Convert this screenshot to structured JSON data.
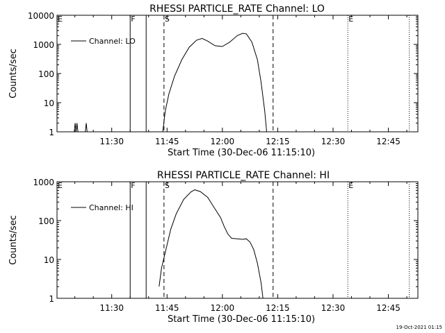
{
  "footer": {
    "timestamp": "19-Oct-2021 01:15"
  },
  "colors": {
    "background": "#ffffff",
    "foreground": "#000000"
  },
  "chart_data": [
    {
      "type": "line",
      "title": "RHESSI PARTICLE_RATE Channel: LO",
      "xlabel": "Start Time (30-Dec-06 11:15:10)",
      "ylabel": "Counts/sec",
      "yscale": "log",
      "xlim": [
        "11:15:10",
        "12:53:00"
      ],
      "ylim": [
        1,
        10000
      ],
      "xticks": [
        {
          "t": "11:30",
          "label": "11:30"
        },
        {
          "t": "11:45",
          "label": "11:45"
        },
        {
          "t": "12:00",
          "label": "12:00"
        },
        {
          "t": "12:15",
          "label": "12:15"
        },
        {
          "t": "12:30",
          "label": "12:30"
        },
        {
          "t": "12:45",
          "label": "12:45"
        }
      ],
      "yticks": [
        {
          "v": 1,
          "label": "1"
        },
        {
          "v": 10,
          "label": "10"
        },
        {
          "v": 100,
          "label": "100"
        },
        {
          "v": 1000,
          "label": "1000"
        },
        {
          "v": 10000,
          "label": "10000"
        }
      ],
      "legend": {
        "label": "Channel: LO",
        "position": "top-left"
      },
      "markers": [
        {
          "t": "11:15:10",
          "label": "E",
          "style": "dotted"
        },
        {
          "t": "11:35:00",
          "label": "F",
          "style": "solid"
        },
        {
          "t": "11:39:20",
          "label": "",
          "style": "solid"
        },
        {
          "t": "11:44:10",
          "label": "S",
          "style": "dashed"
        },
        {
          "t": "12:13:45",
          "label": "",
          "style": "dashed"
        },
        {
          "t": "12:34:00",
          "label": "E",
          "style": "dotted"
        },
        {
          "t": "12:50:40",
          "label": "",
          "style": "dotted"
        }
      ],
      "series": [
        {
          "points": [
            [
              "11:19:50",
              1
            ],
            [
              "11:20:05",
              2
            ],
            [
              "11:20:20",
              1
            ],
            [
              "11:20:35",
              2
            ],
            [
              "11:20:50",
              1
            ],
            [
              "11:22:50",
              1
            ],
            [
              "11:23:05",
              2
            ],
            [
              "11:23:20",
              1
            ]
          ]
        },
        {
          "points": [
            [
              "11:43:50",
              1
            ],
            [
              "11:44:30",
              5
            ],
            [
              "11:45:30",
              20
            ],
            [
              "11:47:00",
              80
            ],
            [
              "11:49:00",
              300
            ],
            [
              "11:51:00",
              800
            ],
            [
              "11:53:00",
              1400
            ],
            [
              "11:54:30",
              1600
            ],
            [
              "11:56:00",
              1300
            ],
            [
              "11:58:00",
              900
            ],
            [
              "12:00:00",
              850
            ],
            [
              "12:02:00",
              1200
            ],
            [
              "12:04:00",
              2000
            ],
            [
              "12:05:30",
              2400
            ],
            [
              "12:06:30",
              2300
            ],
            [
              "12:08:00",
              1200
            ],
            [
              "12:09:30",
              300
            ],
            [
              "12:10:30",
              50
            ],
            [
              "12:11:30",
              5
            ],
            [
              "12:12:00",
              1
            ]
          ]
        }
      ]
    },
    {
      "type": "line",
      "title": "RHESSI PARTICLE_RATE Channel: HI",
      "xlabel": "Start Time (30-Dec-06 11:15:10)",
      "ylabel": "Counts/sec",
      "yscale": "log",
      "xlim": [
        "11:15:10",
        "12:53:00"
      ],
      "ylim": [
        1,
        1000
      ],
      "xticks": [
        {
          "t": "11:30",
          "label": "11:30"
        },
        {
          "t": "11:45",
          "label": "11:45"
        },
        {
          "t": "12:00",
          "label": "12:00"
        },
        {
          "t": "12:15",
          "label": "12:15"
        },
        {
          "t": "12:30",
          "label": "12:30"
        },
        {
          "t": "12:45",
          "label": "12:45"
        }
      ],
      "yticks": [
        {
          "v": 1,
          "label": "1"
        },
        {
          "v": 10,
          "label": "10"
        },
        {
          "v": 100,
          "label": "100"
        },
        {
          "v": 1000,
          "label": "1000"
        }
      ],
      "legend": {
        "label": "Channel: HI",
        "position": "top-left"
      },
      "markers": [
        {
          "t": "11:15:10",
          "label": "E",
          "style": "dotted"
        },
        {
          "t": "11:35:00",
          "label": "F",
          "style": "solid"
        },
        {
          "t": "11:39:20",
          "label": "",
          "style": "solid"
        },
        {
          "t": "11:44:10",
          "label": "S",
          "style": "dashed"
        },
        {
          "t": "12:13:45",
          "label": "",
          "style": "dashed"
        },
        {
          "t": "12:34:00",
          "label": "E",
          "style": "dotted"
        },
        {
          "t": "12:50:40",
          "label": "",
          "style": "dotted"
        }
      ],
      "series": [
        {
          "points": [
            [
              "11:42:50",
              2
            ],
            [
              "11:43:30",
              6
            ],
            [
              "11:44:30",
              15
            ],
            [
              "11:46:00",
              60
            ],
            [
              "11:47:30",
              150
            ],
            [
              "11:49:30",
              350
            ],
            [
              "11:51:30",
              550
            ],
            [
              "11:52:30",
              620
            ],
            [
              "11:54:00",
              560
            ],
            [
              "11:56:00",
              400
            ],
            [
              "11:58:00",
              200
            ],
            [
              "11:59:30",
              120
            ],
            [
              "12:00:30",
              70
            ],
            [
              "12:01:30",
              45
            ],
            [
              "12:02:30",
              35
            ],
            [
              "12:04:00",
              34
            ],
            [
              "12:05:30",
              33
            ],
            [
              "12:06:30",
              34
            ],
            [
              "12:07:30",
              28
            ],
            [
              "12:08:30",
              18
            ],
            [
              "12:09:30",
              8
            ],
            [
              "12:10:30",
              2.5
            ],
            [
              "12:11:00",
              1
            ]
          ]
        }
      ]
    }
  ]
}
